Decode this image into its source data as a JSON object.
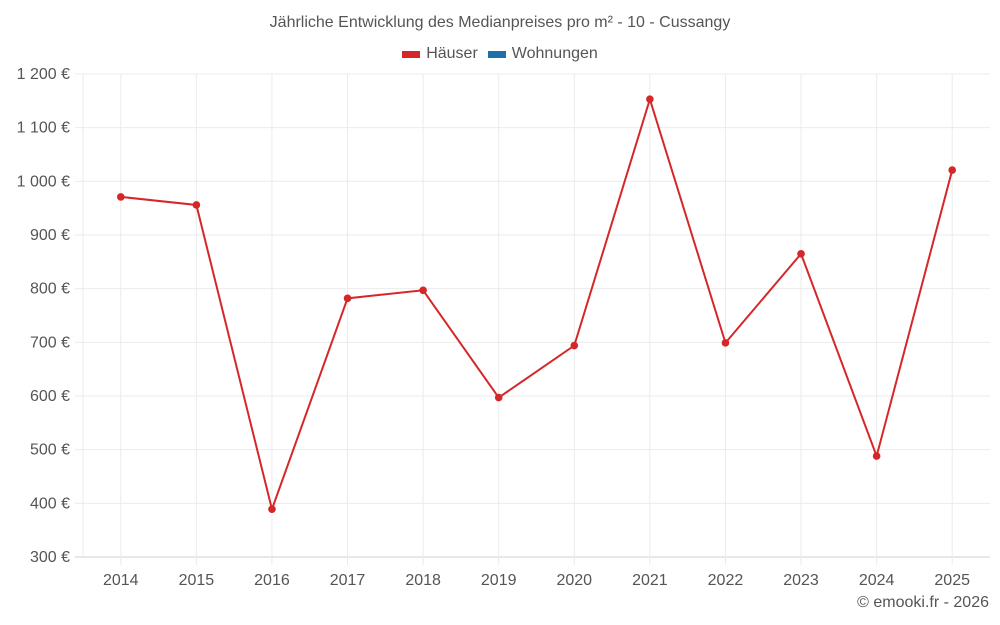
{
  "header": {
    "title": "Jährliche Entwicklung des Medianpreises pro m² - 10 - Cussangy"
  },
  "legend": [
    {
      "label": "Häuser",
      "color": "#d62728"
    },
    {
      "label": "Wohnungen",
      "color": "#1f6fa8"
    }
  ],
  "footer": {
    "credit": "© emooki.fr - 2026"
  },
  "chart_data": {
    "type": "line",
    "title": "Jährliche Entwicklung des Medianpreises pro m² - 10 - Cussangy",
    "xlabel": "",
    "ylabel": "",
    "categories": [
      "2014",
      "2015",
      "2016",
      "2017",
      "2018",
      "2019",
      "2020",
      "2021",
      "2022",
      "2023",
      "2024",
      "2025"
    ],
    "series": [
      {
        "name": "Häuser",
        "color": "#d62728",
        "values": [
          971,
          956,
          389,
          782,
          797,
          597,
          694,
          1153,
          699,
          865,
          488,
          1021
        ]
      },
      {
        "name": "Wohnungen",
        "color": "#1f6fa8",
        "values": []
      }
    ],
    "ylim": [
      300,
      1200
    ],
    "yticks": [
      300,
      400,
      500,
      600,
      700,
      800,
      900,
      1000,
      1100,
      1200
    ],
    "ytick_labels": [
      "300 €",
      "400 €",
      "500 €",
      "600 €",
      "700 €",
      "800 €",
      "900 €",
      "1 000 €",
      "1 100 €",
      "1 200 €"
    ],
    "grid": true,
    "legend_position": "top"
  }
}
